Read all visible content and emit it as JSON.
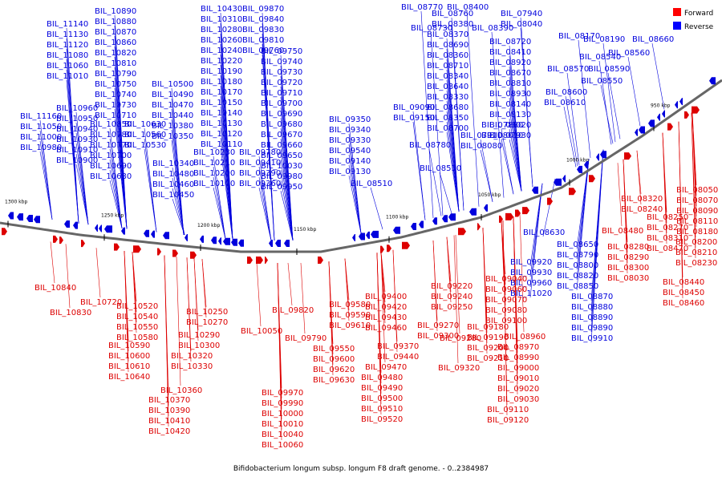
{
  "caption": "Bifidobacterium longum subsp. longum F8 draft genome. - 0..2384987",
  "legend": [
    {
      "label": "Forward",
      "color": "#ff0000"
    },
    {
      "label": "Reverse",
      "color": "#0000ff"
    }
  ],
  "colors": {
    "forward": "#dd0000",
    "reverse": "#0000dd",
    "backbone": "#666666"
  },
  "ticks": [
    "1300 kbp",
    "1250 kbp",
    "1200 kbp",
    "1150 kbp",
    "1100 kbp",
    "1050 kbp",
    "1000 kbp",
    "950 kbp"
  ],
  "reverse_labels": [
    "BIL_11140",
    "BIL_11130",
    "BIL_11120",
    "BIL_11080",
    "BIL_11060",
    "BIL_11010",
    "BIL_11160",
    "BIL_11050",
    "BIL_11000",
    "BIL_10980",
    "BIL_10960",
    "BIL_10950",
    "BIL_10940",
    "BIL_10930",
    "BIL_10910",
    "BIL_10900",
    "BIL_10890",
    "BIL_10880",
    "BIL_10870",
    "BIL_10860",
    "BIL_10820",
    "BIL_10810",
    "BIL_10790",
    "BIL_10750",
    "BIL_10740",
    "BIL_10730",
    "BIL_10710",
    "BIL_10850",
    "BIL_10780",
    "BIL_10770",
    "BIL_10700",
    "BIL_10690",
    "BIL_10680",
    "BIL_10630",
    "BIL_10560",
    "BIL_10530",
    "BIL_10500",
    "BIL_10490",
    "BIL_10470",
    "BIL_10440",
    "BIL_10380",
    "BIL_10350",
    "BIL_10340",
    "BIL_10480",
    "BIL_10460",
    "BIL_10450",
    "BIL_10430",
    "BIL_10310",
    "BIL_10280",
    "BIL_10260",
    "BIL_10240",
    "BIL_10220",
    "BIL_10190",
    "BIL_10180",
    "BIL_10170",
    "BIL_10150",
    "BIL_10140",
    "BIL_10130",
    "BIL_10120",
    "BIL_10110",
    "BIL_10230",
    "BIL_10210",
    "BIL_10200",
    "BIL_10100",
    "BIL_09870",
    "BIL_09840",
    "BIL_09830",
    "BIL_09810",
    "BIL_09760",
    "BIL_09750",
    "BIL_09740",
    "BIL_09730",
    "BIL_09720",
    "BIL_09710",
    "BIL_09700",
    "BIL_09690",
    "BIL_09680",
    "BIL_09670",
    "BIL_09660",
    "BIL_09650",
    "BIL_10030",
    "BIL_09980",
    "BIL_09950",
    "BIL_09780",
    "BIL_09410",
    "BIL_09390",
    "BIL_09360",
    "BIL_09350",
    "BIL_09340",
    "BIL_09330",
    "BIL_09540",
    "BIL_09140",
    "BIL_09130",
    "BIL_09090",
    "BIL_09150",
    "BIL_08780",
    "BIL_08530",
    "BIL_08510",
    "BIL_08770",
    "BIL_08400",
    "BIL_08760",
    "BIL_08380",
    "BIL_08730",
    "BIL_08370",
    "BIL_08690",
    "BIL_08360",
    "BIL_08710",
    "BIL_08340",
    "BIL_08640",
    "BIL_08330",
    "BIL_08680",
    "BIL_08350",
    "BIL_08700",
    "BIL_08390",
    "BIL_08720",
    "BIL_08410",
    "BIL_08920",
    "BIL_08670",
    "BIL_08810",
    "BIL_08930",
    "BIL_08140",
    "BIL_08130",
    "BIL_08020",
    "BIL_07930",
    "BIL_07880",
    "BIL_08010",
    "BIL_07910",
    "BIL_08080",
    "BIL_07940",
    "BIL_08040",
    "BIL_08170",
    "BIL_08190",
    "BIL_08660",
    "BIL_08540",
    "BIL_08560",
    "BIL_08570",
    "BIL_08590",
    "BIL_08550",
    "BIL_08600",
    "BIL_08610",
    "BIL_08630",
    "BIL_08650",
    "BIL_08790",
    "BIL_08800",
    "BIL_08820",
    "BIL_08850",
    "BIL_08870",
    "BIL_08880",
    "BIL_08890",
    "BIL_09890",
    "BIL_09910",
    "BIL_09920",
    "BIL_09930",
    "BIL_09960",
    "BIL_11020"
  ],
  "forward_labels": [
    "BIL_10840",
    "BIL_10830",
    "BIL_10720",
    "BIL_10520",
    "BIL_10540",
    "BIL_10550",
    "BIL_10580",
    "BIL_10590",
    "BIL_10600",
    "BIL_10610",
    "BIL_10640",
    "BIL_10250",
    "BIL_10270",
    "BIL_10290",
    "BIL_10300",
    "BIL_10320",
    "BIL_10330",
    "BIL_10360",
    "BIL_10370",
    "BIL_10390",
    "BIL_10410",
    "BIL_10420",
    "BIL_09820",
    "BIL_10050",
    "BIL_09790",
    "BIL_09970",
    "BIL_09990",
    "BIL_10000",
    "BIL_10010",
    "BIL_10040",
    "BIL_10060",
    "BIL_09580",
    "BIL_09590",
    "BIL_09610",
    "BIL_09550",
    "BIL_09600",
    "BIL_09620",
    "BIL_09630",
    "BIL_09400",
    "BIL_09420",
    "BIL_09430",
    "BIL_09460",
    "BIL_09370",
    "BIL_09440",
    "BIL_09470",
    "BIL_09480",
    "BIL_09490",
    "BIL_09500",
    "BIL_09510",
    "BIL_09520",
    "BIL_09220",
    "BIL_09240",
    "BIL_09250",
    "BIL_09270",
    "BIL_09300",
    "BIL_09320",
    "BIL_09280",
    "BIL_09040",
    "BIL_09060",
    "BIL_09070",
    "BIL_09080",
    "BIL_09100",
    "BIL_09180",
    "BIL_09190",
    "BIL_09200",
    "BIL_09210",
    "BIL_08960",
    "BIL_08970",
    "BIL_08990",
    "BIL_09000",
    "BIL_09010",
    "BIL_09020",
    "BIL_09030",
    "BIL_09110",
    "BIL_09120",
    "BIL_08320",
    "BIL_08240",
    "BIL_08250",
    "BIL_08270",
    "BIL_08310",
    "BIL_08470",
    "BIL_08440",
    "BIL_08450",
    "BIL_08460",
    "BIL_08480",
    "BIL_08280",
    "BIL_08290",
    "BIL_08300",
    "BIL_08030",
    "BIL_08050",
    "BIL_08070",
    "BIL_08090",
    "BIL_08110",
    "BIL_08180",
    "BIL_08200",
    "BIL_08210",
    "BIL_08230"
  ]
}
